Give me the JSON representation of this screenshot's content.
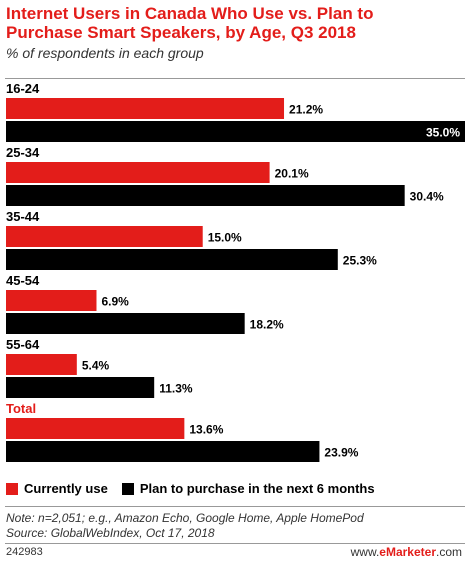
{
  "title": "Internet Users in Canada Who Use vs. Plan to Purchase Smart Speakers, by Age, Q3 2018",
  "subtitle": "% of respondents in each group",
  "legend": {
    "currently_use": "Currently use",
    "plan_to_purchase": "Plan to purchase in the next 6 months"
  },
  "note_line1": "Note: n=2,051; e.g., Amazon Echo, Google Home, Apple HomePod",
  "note_line2": "Source: GlobalWebIndex, Oct 17, 2018",
  "chart_id": "242983",
  "brand_prefix": "www.",
  "brand_name": "eMarketer",
  "brand_suffix": ".com",
  "colors": {
    "currently_use": "#e31d1a",
    "plan_to_purchase": "#000000"
  },
  "chart_data": {
    "type": "bar",
    "orientation": "horizontal",
    "categories": [
      "16-24",
      "25-34",
      "35-44",
      "45-54",
      "55-64",
      "Total"
    ],
    "series": [
      {
        "name": "Currently use",
        "values": [
          21.2,
          20.1,
          15.0,
          6.9,
          5.4,
          13.6
        ]
      },
      {
        "name": "Plan to purchase in the next 6 months",
        "values": [
          35.0,
          30.4,
          25.3,
          18.2,
          11.3,
          23.9
        ]
      }
    ],
    "value_labels": [
      [
        "21.2%",
        "20.1%",
        "15.0%",
        "6.9%",
        "5.4%",
        "13.6%"
      ],
      [
        "35.0%",
        "30.4%",
        "25.3%",
        "18.2%",
        "11.3%",
        "23.9%"
      ]
    ],
    "xlim": [
      0,
      35
    ],
    "grid": false,
    "legend_position": "bottom-left"
  }
}
